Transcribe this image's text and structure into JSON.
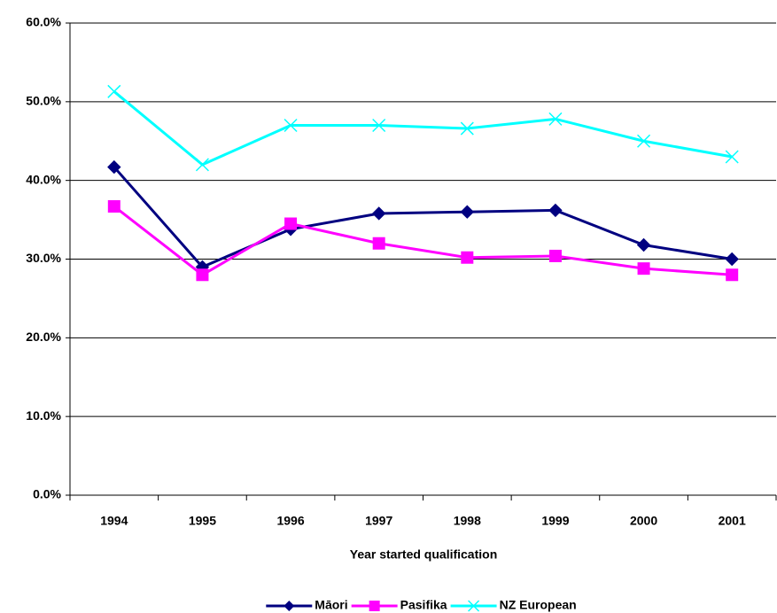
{
  "chart_data": {
    "type": "line",
    "x_label": "Year started qualification",
    "categories": [
      "1994",
      "1995",
      "1996",
      "1997",
      "1998",
      "1999",
      "2000",
      "2001"
    ],
    "series": [
      {
        "name": "Māori",
        "color": "#000080",
        "marker": "diamond",
        "values": [
          41.7,
          29.0,
          33.8,
          35.8,
          36.0,
          36.2,
          31.8,
          30.0
        ]
      },
      {
        "name": "Pasifika",
        "color": "#ff00ff",
        "marker": "square",
        "values": [
          36.7,
          28.0,
          34.5,
          32.0,
          30.2,
          30.4,
          28.8,
          28.0
        ]
      },
      {
        "name": "NZ European",
        "color": "#00ffff",
        "marker": "x",
        "values": [
          51.3,
          42.0,
          47.0,
          47.0,
          46.6,
          47.8,
          45.0,
          43.0
        ]
      }
    ],
    "ylim": [
      0,
      60
    ],
    "yticks": [
      {
        "value": 0,
        "label": "0.0%"
      },
      {
        "value": 10,
        "label": "10.0%"
      },
      {
        "value": 20,
        "label": "20.0%"
      },
      {
        "value": 30,
        "label": "30.0%"
      },
      {
        "value": 40,
        "label": "40.0%"
      },
      {
        "value": 50,
        "label": "50.0%"
      },
      {
        "value": 60,
        "label": "60.0%"
      }
    ],
    "grid": true,
    "legend": "bottom"
  }
}
